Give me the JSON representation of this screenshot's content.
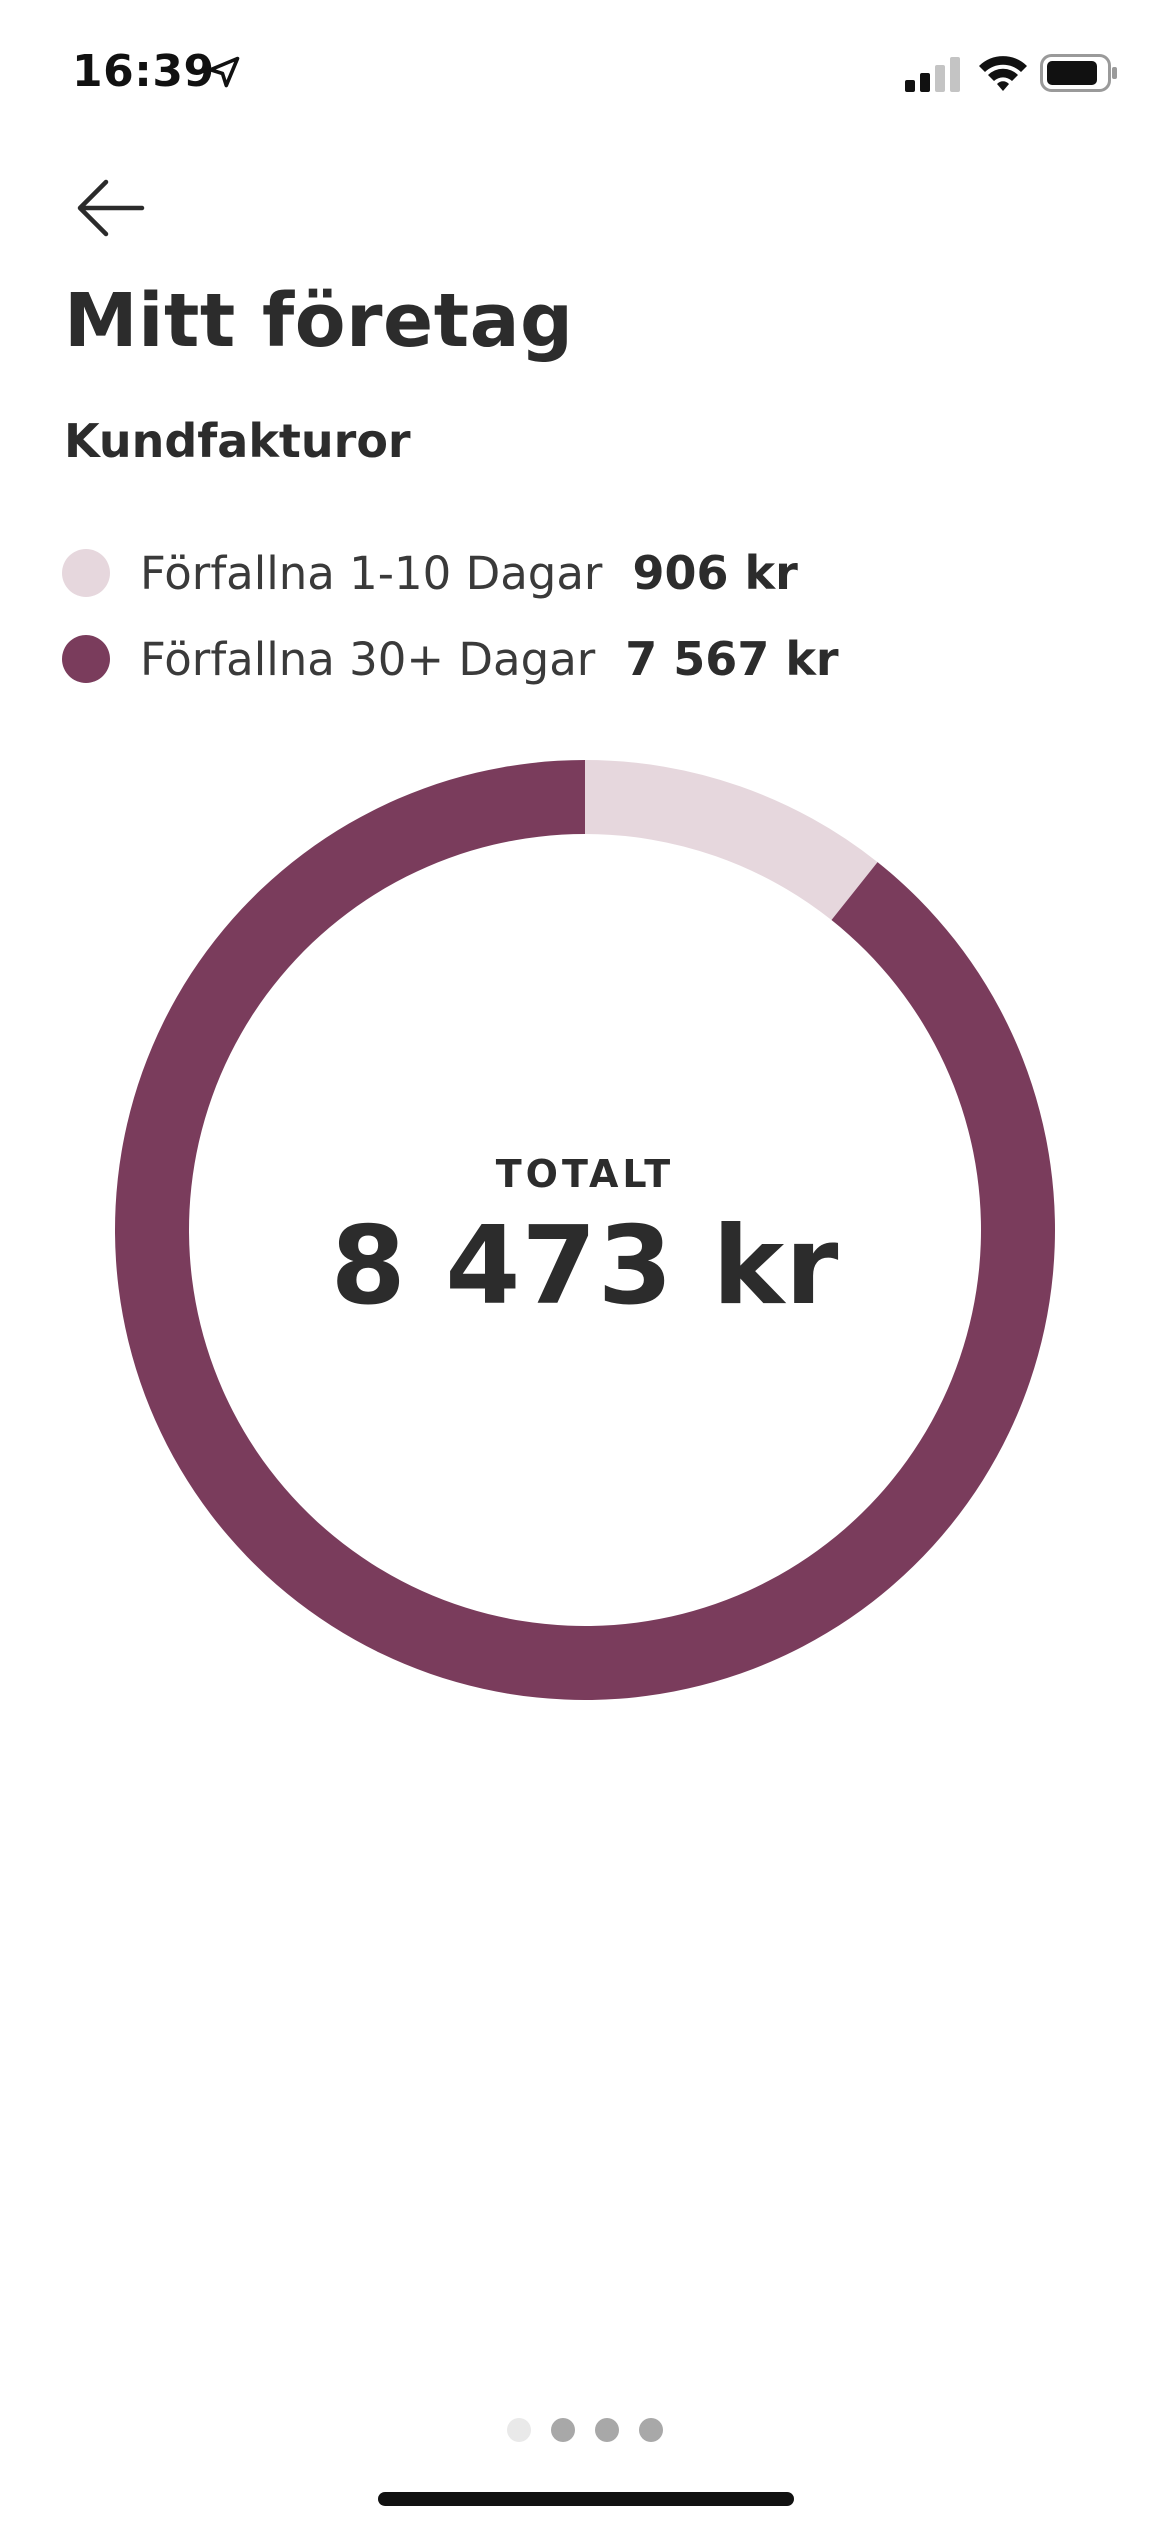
{
  "status_bar": {
    "time": "16:39"
  },
  "header": {
    "title": "Mitt företag",
    "section_title": "Kundfakturor"
  },
  "legend": [
    {
      "label": "Förfallna 1-10 Dagar",
      "value": "906 kr",
      "color": "#e6d7dd"
    },
    {
      "label": "Förfallna 30+ Dagar",
      "value": "7 567 kr",
      "color": "#7a3c5c"
    }
  ],
  "total": {
    "label": "TOTALT",
    "value": "8 473 kr"
  },
  "chart_data": {
    "type": "pie",
    "categories": [
      "Förfallna 1-10 Dagar",
      "Förfallna 30+ Dagar"
    ],
    "values": [
      906,
      7567
    ],
    "colors": [
      "#e6d7dd",
      "#7a3c5c"
    ],
    "center_label": "TOTALT",
    "center_value": "8 473 kr"
  },
  "pagination": {
    "pages": 4,
    "active_index": 0
  }
}
